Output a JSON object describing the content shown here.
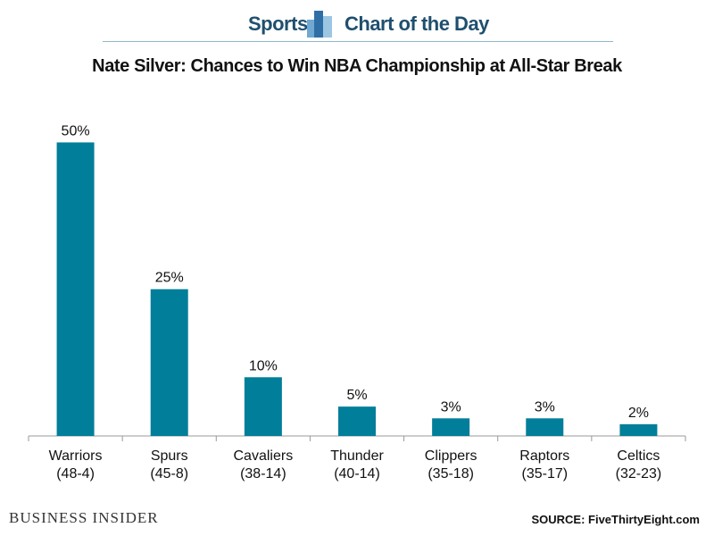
{
  "header": {
    "left_label": "Sports",
    "right_label": "Chart of the Day",
    "logo_icon": "bar-chart-logo-icon"
  },
  "chart_data": {
    "type": "bar",
    "title": "Nate Silver: Chances to Win NBA Championship at All-Star Break",
    "categories": [
      "Warriors",
      "Spurs",
      "Cavaliers",
      "Thunder",
      "Clippers",
      "Raptors",
      "Celtics"
    ],
    "records": [
      "(48-4)",
      "(45-8)",
      "(38-14)",
      "(40-14)",
      "(35-18)",
      "(35-17)",
      "(32-23)"
    ],
    "values": [
      50,
      25,
      10,
      5,
      3,
      3,
      2
    ],
    "value_labels": [
      "50%",
      "25%",
      "10%",
      "5%",
      "3%",
      "3%",
      "2%"
    ],
    "ylim": [
      0,
      56
    ],
    "grid": false,
    "bar_color": "#007e9a"
  },
  "footer": {
    "brand": "Business Insider",
    "source": "SOURCE: FiveThirtyEight.com"
  }
}
